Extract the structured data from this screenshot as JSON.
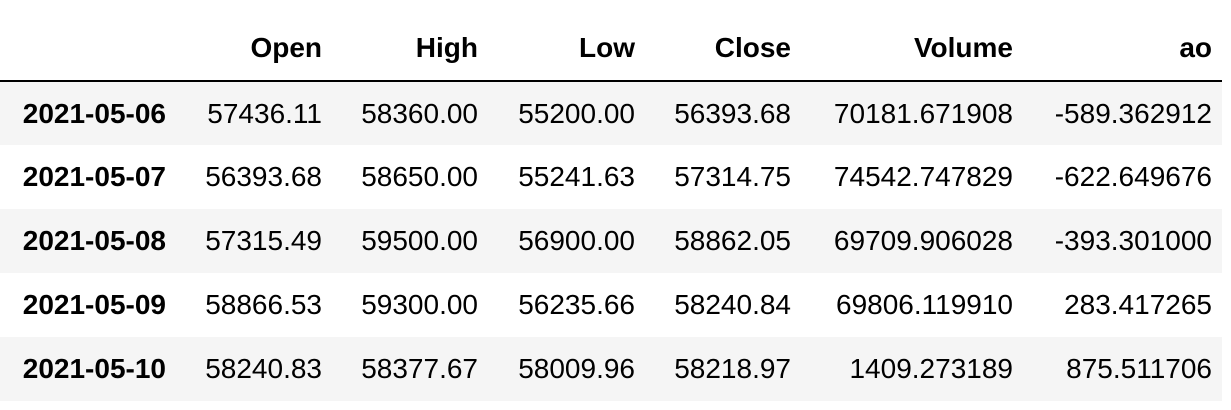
{
  "table": {
    "index_header": "",
    "columns": [
      "Open",
      "High",
      "Low",
      "Close",
      "Volume",
      "ao"
    ],
    "rows": [
      {
        "index": "2021-05-06",
        "values": [
          "57436.11",
          "58360.00",
          "55200.00",
          "56393.68",
          "70181.671908",
          "-589.362912"
        ]
      },
      {
        "index": "2021-05-07",
        "values": [
          "56393.68",
          "58650.00",
          "55241.63",
          "57314.75",
          "74542.747829",
          "-622.649676"
        ]
      },
      {
        "index": "2021-05-08",
        "values": [
          "57315.49",
          "59500.00",
          "56900.00",
          "58862.05",
          "69709.906028",
          "-393.301000"
        ]
      },
      {
        "index": "2021-05-09",
        "values": [
          "58866.53",
          "59300.00",
          "56235.66",
          "58240.84",
          "69806.119910",
          "283.417265"
        ]
      },
      {
        "index": "2021-05-10",
        "values": [
          "58240.83",
          "58377.67",
          "58009.96",
          "58218.97",
          "1409.273189",
          "875.511706"
        ]
      }
    ]
  }
}
